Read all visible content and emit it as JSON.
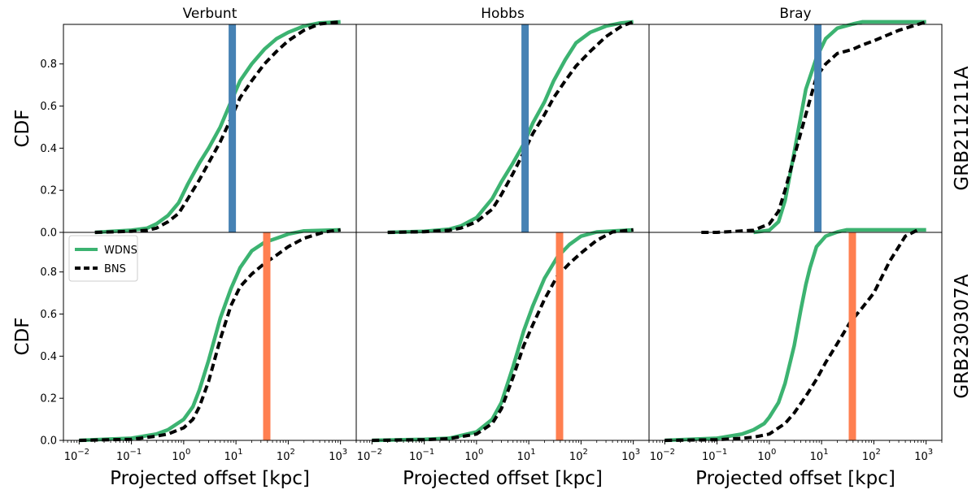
{
  "colors": {
    "wdns": "#3cb371",
    "bns": "#000000",
    "grb211211a_offset": "#4682b4",
    "grb230307a_offset": "#ff7f50"
  },
  "chart_data": {
    "type": "line",
    "x_scale": "log",
    "xlim": [
      0.005,
      2000
    ],
    "ylim": [
      0,
      1
    ],
    "x_ticks": [
      "10",
      "10",
      "10",
      "10",
      "10",
      "10"
    ],
    "x_tick_exponents": [
      "−2",
      "−1",
      "0",
      "1",
      "2",
      "3"
    ],
    "y_ticks": [
      "0.0",
      "0.2",
      "0.4",
      "0.6",
      "0.8"
    ],
    "xlabel": "Projected offset [kpc]",
    "ylabel": "CDF",
    "legend": {
      "placement": "upper-left",
      "panel": "GRB230307A-Verbunt",
      "entries": [
        "WDNS",
        "BNS"
      ]
    },
    "columns": [
      "Verbunt",
      "Hobbs",
      "Bray"
    ],
    "rows": [
      {
        "name": "GRB211211A",
        "offset_kpc": 8.5
      },
      {
        "name": "GRB230307A",
        "offset_kpc": 38.9
      }
    ],
    "panels": [
      {
        "row": "GRB211211A",
        "column": "Verbunt",
        "series": [
          {
            "name": "WDNS",
            "x": [
              0.02,
              0.1,
              0.2,
              0.3,
              0.5,
              0.8,
              1.2,
              2,
              3,
              5,
              8,
              12,
              20,
              35,
              60,
              100,
              200,
              400,
              1000
            ],
            "y": [
              0,
              0.01,
              0.02,
              0.04,
              0.08,
              0.14,
              0.23,
              0.33,
              0.4,
              0.5,
              0.62,
              0.72,
              0.8,
              0.87,
              0.92,
              0.95,
              0.98,
              0.995,
              1.0
            ]
          },
          {
            "name": "BNS",
            "x": [
              0.02,
              0.1,
              0.2,
              0.3,
              0.5,
              0.8,
              1.2,
              2,
              3,
              5,
              8,
              12,
              20,
              35,
              60,
              100,
              200,
              400,
              1000
            ],
            "y": [
              0,
              0.005,
              0.01,
              0.02,
              0.05,
              0.09,
              0.16,
              0.25,
              0.33,
              0.43,
              0.54,
              0.64,
              0.72,
              0.8,
              0.86,
              0.91,
              0.96,
              0.99,
              1.0
            ]
          }
        ]
      },
      {
        "row": "GRB211211A",
        "column": "Hobbs",
        "series": [
          {
            "name": "WDNS",
            "x": [
              0.02,
              0.1,
              0.3,
              0.5,
              1,
              2,
              3,
              5,
              8,
              12,
              20,
              30,
              50,
              80,
              150,
              300,
              600,
              1000
            ],
            "y": [
              0,
              0.005,
              0.015,
              0.03,
              0.07,
              0.16,
              0.24,
              0.33,
              0.42,
              0.52,
              0.62,
              0.72,
              0.82,
              0.9,
              0.95,
              0.98,
              0.995,
              1.0
            ]
          },
          {
            "name": "BNS",
            "x": [
              0.02,
              0.1,
              0.3,
              0.5,
              1,
              2,
              3,
              5,
              8,
              12,
              20,
              30,
              50,
              80,
              150,
              300,
              600,
              1000
            ],
            "y": [
              0,
              0.003,
              0.01,
              0.02,
              0.05,
              0.11,
              0.18,
              0.28,
              0.38,
              0.47,
              0.56,
              0.64,
              0.72,
              0.79,
              0.86,
              0.93,
              0.98,
              1.0
            ]
          }
        ]
      },
      {
        "row": "GRB211211A",
        "column": "Bray",
        "series": [
          {
            "name": "WDNS",
            "x": [
              0.5,
              1,
              1.5,
              2,
              3,
              5,
              8,
              12,
              20,
              40,
              60,
              100,
              300,
              1000
            ],
            "y": [
              0,
              0.01,
              0.05,
              0.15,
              0.38,
              0.68,
              0.83,
              0.92,
              0.97,
              0.99,
              1.0,
              1.0,
              1.0,
              1.0
            ]
          },
          {
            "name": "BNS",
            "x": [
              0.05,
              0.1,
              0.5,
              1,
              1.5,
              2,
              3,
              5,
              8,
              12,
              20,
              40,
              60,
              100,
              300,
              1000
            ],
            "y": [
              0,
              0,
              0.01,
              0.04,
              0.1,
              0.2,
              0.36,
              0.56,
              0.74,
              0.8,
              0.85,
              0.87,
              0.89,
              0.91,
              0.96,
              1.0
            ]
          }
        ]
      },
      {
        "row": "GRB230307A",
        "column": "Verbunt",
        "series": [
          {
            "name": "WDNS",
            "x": [
              0.01,
              0.1,
              0.3,
              0.5,
              1,
              1.5,
              2,
              3,
              5,
              8,
              12,
              20,
              35,
              60,
              100,
              200,
              1000
            ],
            "y": [
              0,
              0.01,
              0.03,
              0.05,
              0.1,
              0.16,
              0.24,
              0.38,
              0.58,
              0.72,
              0.82,
              0.9,
              0.94,
              0.96,
              0.98,
              0.995,
              1.0
            ]
          },
          {
            "name": "BNS",
            "x": [
              0.01,
              0.1,
              0.3,
              0.5,
              1,
              1.5,
              2,
              3,
              5,
              8,
              12,
              20,
              35,
              60,
              100,
              200,
              500,
              1000
            ],
            "y": [
              0,
              0.005,
              0.02,
              0.03,
              0.06,
              0.1,
              0.16,
              0.28,
              0.48,
              0.64,
              0.73,
              0.79,
              0.84,
              0.88,
              0.92,
              0.96,
              0.99,
              1.0
            ]
          }
        ]
      },
      {
        "row": "GRB230307A",
        "column": "Hobbs",
        "series": [
          {
            "name": "WDNS",
            "x": [
              0.01,
              0.1,
              0.3,
              1,
              2,
              3,
              5,
              8,
              12,
              20,
              35,
              60,
              100,
              200,
              1000
            ],
            "y": [
              0,
              0.005,
              0.01,
              0.04,
              0.1,
              0.18,
              0.35,
              0.52,
              0.64,
              0.77,
              0.87,
              0.93,
              0.97,
              0.99,
              1.0
            ]
          },
          {
            "name": "BNS",
            "x": [
              0.01,
              0.1,
              0.3,
              1,
              2,
              3,
              5,
              8,
              12,
              20,
              35,
              60,
              100,
              200,
              400,
              1000
            ],
            "y": [
              0,
              0.003,
              0.008,
              0.03,
              0.08,
              0.15,
              0.3,
              0.45,
              0.55,
              0.67,
              0.78,
              0.84,
              0.89,
              0.95,
              0.99,
              1.0
            ]
          }
        ]
      },
      {
        "row": "GRB230307A",
        "column": "Bray",
        "series": [
          {
            "name": "WDNS",
            "x": [
              0.01,
              0.1,
              0.3,
              0.5,
              0.8,
              1,
              1.5,
              2,
              3,
              4,
              5,
              6,
              8,
              12,
              20,
              30,
              40,
              1000
            ],
            "y": [
              0,
              0.01,
              0.03,
              0.05,
              0.08,
              0.11,
              0.18,
              0.27,
              0.45,
              0.62,
              0.74,
              0.82,
              0.92,
              0.97,
              0.99,
              1.0,
              1.0,
              1.0
            ]
          },
          {
            "name": "BNS",
            "x": [
              0.01,
              0.1,
              0.3,
              0.5,
              1,
              2,
              3,
              5,
              8,
              12,
              20,
              35,
              60,
              100,
              200,
              400,
              700
            ],
            "y": [
              0,
              0.003,
              0.01,
              0.015,
              0.03,
              0.08,
              0.13,
              0.21,
              0.29,
              0.37,
              0.46,
              0.56,
              0.63,
              0.7,
              0.85,
              0.97,
              1.0
            ]
          }
        ]
      }
    ]
  }
}
